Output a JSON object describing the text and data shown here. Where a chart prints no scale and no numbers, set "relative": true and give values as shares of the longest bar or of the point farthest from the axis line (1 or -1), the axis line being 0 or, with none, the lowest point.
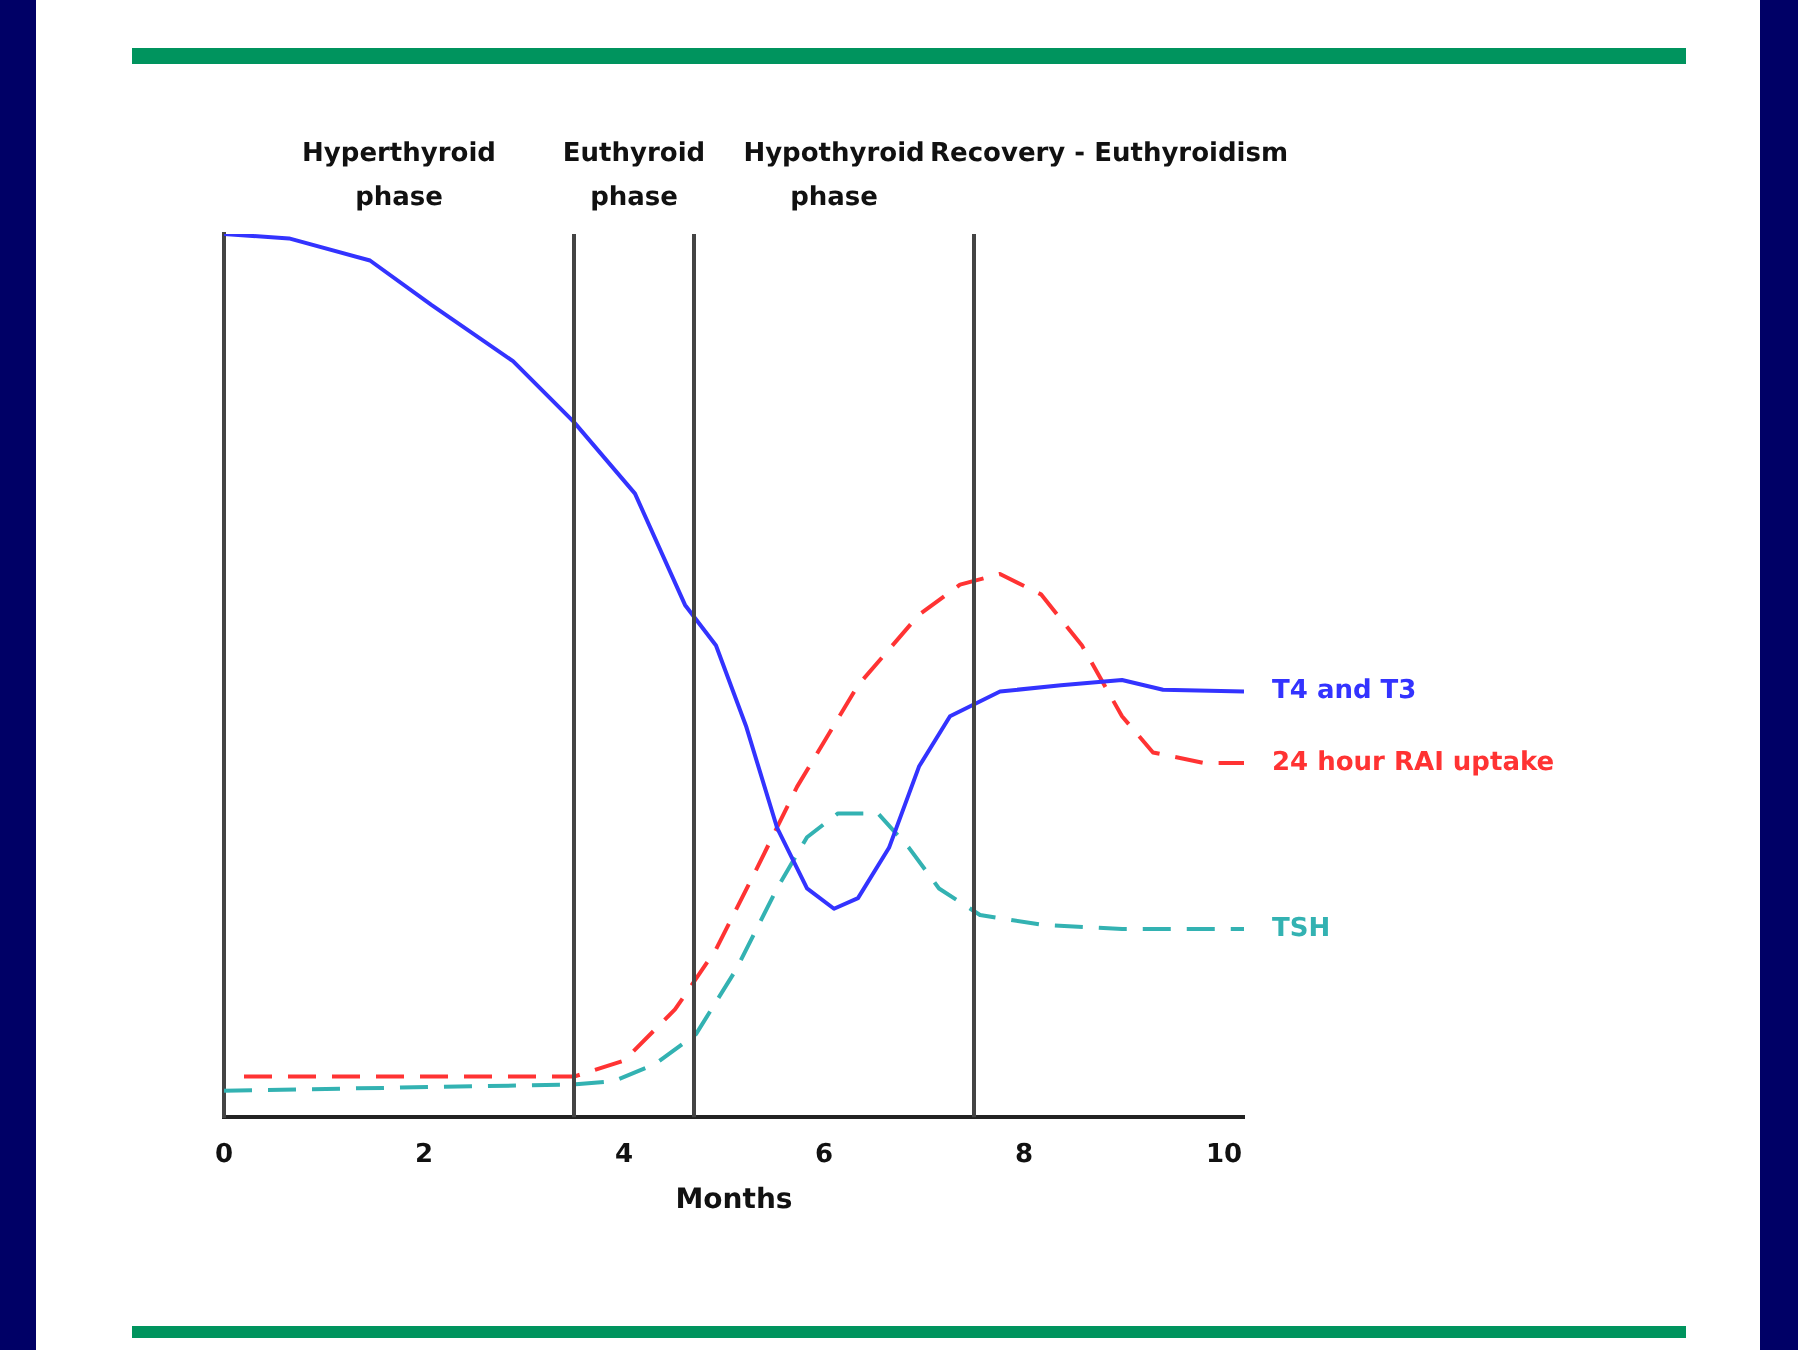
{
  "chart_data": {
    "type": "line",
    "relative": true,
    "xlabel": "Months",
    "xlim": [
      0,
      10.2
    ],
    "xticks": [
      0,
      2,
      4,
      6,
      8,
      10
    ],
    "grid": false,
    "legend": false,
    "marker": "none",
    "series": [
      {
        "name": "T4 and T3",
        "color": "#3333ff",
        "line_style": "solid",
        "x": [
          0,
          0.65,
          1.46,
          2.07,
          2.89,
          3.5,
          4.11,
          4.61,
          4.92,
          5.22,
          5.53,
          5.83,
          6.1,
          6.34,
          6.65,
          6.95,
          7.26,
          7.76,
          8.37,
          8.98,
          9.39,
          10.2
        ],
        "values": [
          1.0,
          0.995,
          0.97,
          0.92,
          0.856,
          0.787,
          0.706,
          0.58,
          0.534,
          0.443,
          0.328,
          0.259,
          0.236,
          0.248,
          0.305,
          0.397,
          0.454,
          0.482,
          0.489,
          0.495,
          0.484,
          0.482
        ]
      },
      {
        "name": "24 hour RAI uptake",
        "color": "#ff3333",
        "line_style": "dashed",
        "x": [
          0.2,
          3.5,
          4.0,
          4.51,
          4.92,
          5.33,
          5.73,
          6.34,
          6.95,
          7.36,
          7.76,
          8.17,
          8.58,
          8.98,
          9.29,
          9.8,
          10.2
        ],
        "values": [
          0.046,
          0.046,
          0.064,
          0.122,
          0.19,
          0.282,
          0.374,
          0.489,
          0.569,
          0.603,
          0.615,
          0.592,
          0.534,
          0.454,
          0.413,
          0.401,
          0.401
        ]
      },
      {
        "name": "TSH",
        "color": "#33b2b2",
        "line_style": "dashed",
        "x": [
          0,
          3.5,
          3.9,
          4.31,
          4.72,
          5.12,
          5.53,
          5.83,
          6.14,
          6.54,
          6.85,
          7.15,
          7.56,
          8.17,
          8.98,
          10.2
        ],
        "values": [
          0.03,
          0.037,
          0.041,
          0.06,
          0.094,
          0.167,
          0.259,
          0.317,
          0.344,
          0.344,
          0.305,
          0.259,
          0.229,
          0.218,
          0.213,
          0.213
        ]
      }
    ],
    "ref_lines": [
      {
        "axis": "x",
        "value": 3.5,
        "color": "#444444"
      },
      {
        "axis": "x",
        "value": 4.7,
        "color": "#444444"
      },
      {
        "axis": "x",
        "value": 7.5,
        "color": "#444444"
      }
    ],
    "annotations": [
      "Hyperthyroid\nphase",
      "Euthyroid\nphase",
      "Hypothyroid\nphase",
      "Recovery - Euthyroidism"
    ]
  }
}
